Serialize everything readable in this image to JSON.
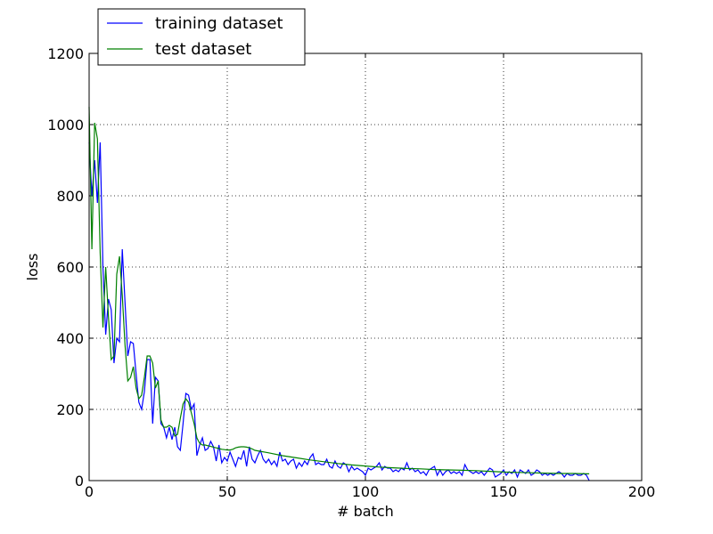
{
  "chart_data": {
    "type": "line",
    "xlabel": "# batch",
    "ylabel": "loss",
    "xlim": [
      0,
      200
    ],
    "ylim": [
      0,
      1200
    ],
    "xticks": [
      0,
      50,
      100,
      150,
      200
    ],
    "yticks": [
      0,
      200,
      400,
      600,
      800,
      1000,
      1200
    ],
    "grid": true,
    "legend": "upper left",
    "series": [
      {
        "name": "training dataset",
        "color": "#0000ff",
        "x": [
          0,
          1,
          2,
          3,
          4,
          5,
          6,
          7,
          8,
          9,
          10,
          11,
          12,
          13,
          14,
          15,
          16,
          17,
          18,
          19,
          20,
          21,
          22,
          23,
          24,
          25,
          26,
          27,
          28,
          29,
          30,
          31,
          32,
          33,
          34,
          35,
          36,
          37,
          38,
          39,
          40,
          41,
          42,
          43,
          44,
          45,
          46,
          47,
          48,
          49,
          50,
          51,
          52,
          53,
          54,
          55,
          56,
          57,
          58,
          59,
          60,
          61,
          62,
          63,
          64,
          65,
          66,
          67,
          68,
          69,
          70,
          71,
          72,
          73,
          74,
          75,
          76,
          77,
          78,
          79,
          80,
          81,
          82,
          83,
          84,
          85,
          86,
          87,
          88,
          89,
          90,
          91,
          92,
          93,
          94,
          95,
          96,
          97,
          98,
          99,
          100,
          101,
          102,
          103,
          104,
          105,
          106,
          107,
          108,
          109,
          110,
          111,
          112,
          113,
          114,
          115,
          116,
          117,
          118,
          119,
          120,
          121,
          122,
          123,
          124,
          125,
          126,
          127,
          128,
          129,
          130,
          131,
          132,
          133,
          134,
          135,
          136,
          137,
          138,
          139,
          140,
          141,
          142,
          143,
          144,
          145,
          146,
          147,
          148,
          149,
          150,
          151,
          152,
          153,
          154,
          155,
          156,
          157,
          158,
          159,
          160,
          161,
          162,
          163,
          164,
          165,
          166,
          167,
          168,
          169,
          170,
          171,
          172,
          173,
          174,
          175,
          176,
          177,
          178,
          179,
          180,
          181
        ],
        "values": [
          950,
          800,
          900,
          780,
          950,
          600,
          410,
          510,
          480,
          330,
          400,
          390,
          650,
          500,
          350,
          390,
          385,
          300,
          220,
          200,
          250,
          340,
          340,
          160,
          290,
          280,
          160,
          150,
          120,
          150,
          115,
          150,
          95,
          85,
          160,
          245,
          240,
          200,
          215,
          70,
          100,
          120,
          85,
          90,
          110,
          95,
          55,
          100,
          50,
          65,
          55,
          80,
          60,
          40,
          65,
          60,
          85,
          40,
          95,
          60,
          50,
          70,
          85,
          60,
          50,
          60,
          45,
          55,
          40,
          80,
          55,
          60,
          45,
          55,
          60,
          35,
          50,
          40,
          55,
          45,
          65,
          75,
          45,
          50,
          45,
          45,
          60,
          40,
          35,
          55,
          40,
          35,
          50,
          45,
          25,
          40,
          30,
          35,
          30,
          25,
          15,
          35,
          30,
          35,
          40,
          50,
          30,
          40,
          35,
          35,
          25,
          30,
          25,
          35,
          30,
          50,
          30,
          35,
          25,
          30,
          20,
          25,
          15,
          30,
          35,
          40,
          15,
          30,
          15,
          25,
          30,
          20,
          25,
          20,
          25,
          15,
          45,
          30,
          25,
          20,
          25,
          20,
          25,
          15,
          25,
          35,
          30,
          10,
          15,
          20,
          30,
          15,
          25,
          20,
          30,
          10,
          30,
          25,
          20,
          30,
          15,
          20,
          30,
          25,
          15,
          20,
          15,
          20,
          15,
          20,
          25,
          20,
          10,
          20,
          15,
          15,
          20,
          15,
          15,
          20,
          15,
          0
        ]
      },
      {
        "name": "test dataset",
        "color": "#008000",
        "x": [
          0,
          1,
          2,
          3,
          4,
          5,
          6,
          7,
          8,
          9,
          10,
          11,
          12,
          13,
          14,
          15,
          16,
          17,
          18,
          19,
          20,
          21,
          22,
          23,
          24,
          25,
          26,
          27,
          28,
          29,
          30,
          31,
          32,
          33,
          34,
          35,
          36,
          37,
          38,
          39,
          40,
          41,
          42,
          43,
          44,
          45,
          46,
          47,
          48,
          49,
          50,
          51,
          52,
          53,
          54,
          55,
          56,
          57,
          58,
          59,
          60,
          65,
          70,
          75,
          80,
          85,
          90,
          95,
          100,
          105,
          110,
          115,
          120,
          125,
          130,
          135,
          140,
          145,
          150,
          155,
          160,
          165,
          170,
          175,
          180,
          181
        ],
        "values": [
          1050,
          650,
          1005,
          960,
          640,
          430,
          600,
          460,
          340,
          350,
          580,
          630,
          520,
          380,
          280,
          290,
          320,
          260,
          230,
          240,
          290,
          350,
          350,
          330,
          260,
          280,
          170,
          150,
          150,
          155,
          150,
          125,
          130,
          175,
          215,
          230,
          220,
          190,
          160,
          120,
          105,
          100,
          100,
          98,
          96,
          94,
          92,
          90,
          88,
          87,
          86,
          86,
          88,
          92,
          94,
          95,
          95,
          94,
          92,
          89,
          85,
          78,
          70,
          64,
          58,
          53,
          48,
          44,
          41,
          38,
          36,
          34,
          33,
          31,
          30,
          29,
          28,
          26,
          24,
          23,
          22,
          21,
          20,
          20,
          19,
          19
        ]
      }
    ]
  }
}
